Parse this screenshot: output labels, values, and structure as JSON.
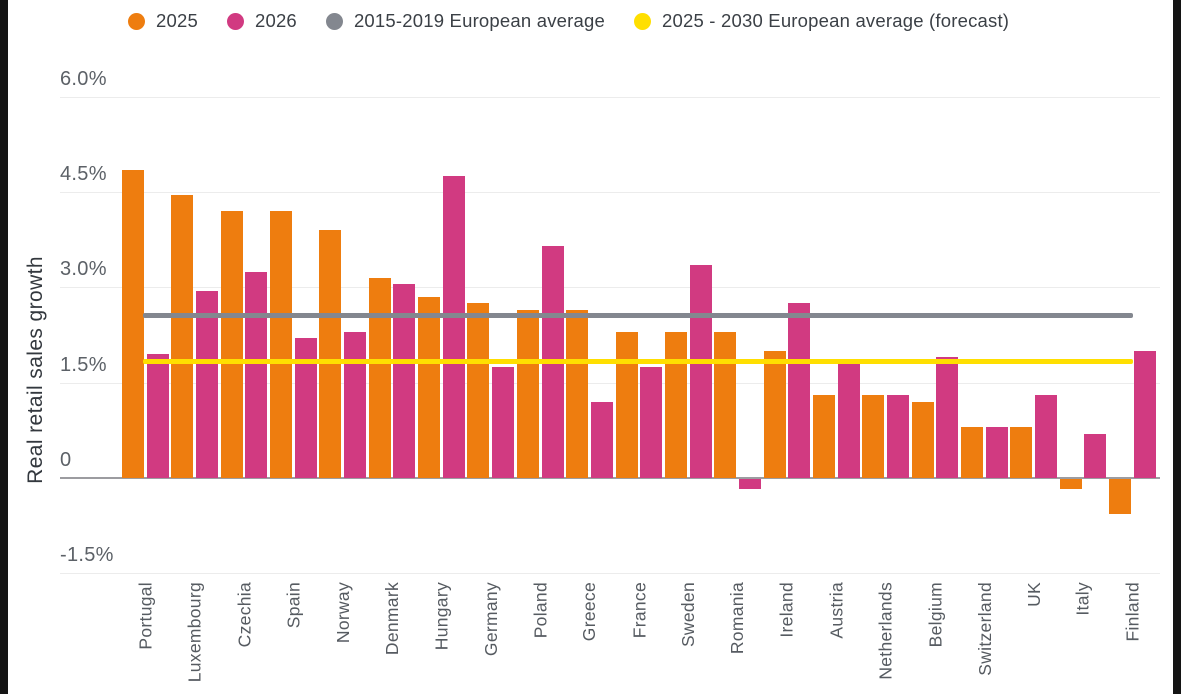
{
  "legend": {
    "items": [
      {
        "label": "2025",
        "color": "#EE7D0F",
        "type": "series"
      },
      {
        "label": "2026",
        "color": "#D13A81",
        "type": "series"
      },
      {
        "label": "2015-2019 European average",
        "color": "#83878F",
        "type": "reference"
      },
      {
        "label": "2025 - 2030 European average (forecast)",
        "color": "#FFDF00",
        "type": "reference"
      }
    ]
  },
  "chart_data": {
    "type": "bar",
    "title": "",
    "xlabel": "",
    "ylabel": "Real retail sales growth",
    "categories": [
      "Portugal",
      "Luxembourg",
      "Czechia",
      "Spain",
      "Norway",
      "Denmark",
      "Hungary",
      "Germany",
      "Poland",
      "Greece",
      "France",
      "Sweden",
      "Romania",
      "Ireland",
      "Austria",
      "Netherlands",
      "Belgium",
      "Switzerland",
      "UK",
      "Italy",
      "Finland"
    ],
    "series": [
      {
        "name": "2025",
        "color": "#EE7D0F",
        "values": [
          4.85,
          4.45,
          4.2,
          4.2,
          3.9,
          3.15,
          2.85,
          2.75,
          2.65,
          2.65,
          2.3,
          2.3,
          2.3,
          2.0,
          1.3,
          1.3,
          1.2,
          0.8,
          0.8,
          -0.15,
          -0.55
        ]
      },
      {
        "name": "2026",
        "color": "#D13A81",
        "values": [
          1.95,
          2.95,
          3.25,
          2.2,
          2.3,
          3.05,
          4.75,
          1.75,
          3.65,
          1.2,
          1.75,
          3.35,
          -0.15,
          2.75,
          1.8,
          1.3,
          1.9,
          0.8,
          1.3,
          0.7,
          2.0
        ]
      }
    ],
    "reference_lines": [
      {
        "name": "2015-2019 European average",
        "color": "#83878F",
        "value": 2.55
      },
      {
        "name": "2025 - 2030 European average (forecast)",
        "color": "#FFDF00",
        "value": 1.83
      }
    ],
    "yticks": [
      {
        "label": "6.0%",
        "value": 6.0
      },
      {
        "label": "4.5%",
        "value": 4.5
      },
      {
        "label": "3.0%",
        "value": 3.0
      },
      {
        "label": "1.5%",
        "value": 1.5
      },
      {
        "label": "0",
        "value": 0
      },
      {
        "label": "-1.5%",
        "value": -1.5
      }
    ],
    "ylim": [
      -1.5,
      6.0
    ],
    "grid": true,
    "legend_position": "top"
  }
}
